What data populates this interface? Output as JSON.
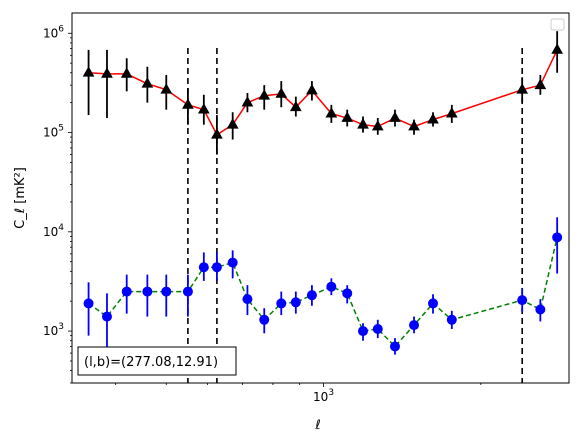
{
  "chart_data": {
    "type": "scatter",
    "title": "",
    "xlabel": "ℓ",
    "ylabel": "C_ℓ  [mK²]",
    "xscale": "log",
    "yscale": "log",
    "xlim": [
      330,
      2950
    ],
    "ylim": [
      300,
      1600000
    ],
    "x_tick_labels": [
      {
        "value": 1000,
        "mantissa": "10",
        "exponent": "3"
      }
    ],
    "y_tick_labels": [
      {
        "value": 1000,
        "mantissa": "10",
        "exponent": "3"
      },
      {
        "value": 10000,
        "mantissa": "10",
        "exponent": "4"
      },
      {
        "value": 100000,
        "mantissa": "10",
        "exponent": "5"
      },
      {
        "value": 1000000,
        "mantissa": "10",
        "exponent": "6"
      }
    ],
    "vertical_lines": [
      550,
      625,
      2400
    ],
    "legend": "top-right (empty)",
    "annotation": "(l,b)=(277.08,12.91)",
    "series": [
      {
        "marker": "triangle",
        "color": "#000000",
        "line_color": "#ff0000",
        "line_style": "solid",
        "points": [
          {
            "x": 355,
            "y": 400000,
            "lo": 150000,
            "hi": 680000
          },
          {
            "x": 385,
            "y": 390000,
            "lo": 140000,
            "hi": 680000
          },
          {
            "x": 420,
            "y": 390000,
            "lo": 260000,
            "hi": 560000
          },
          {
            "x": 460,
            "y": 310000,
            "lo": 200000,
            "hi": 460000
          },
          {
            "x": 500,
            "y": 270000,
            "lo": 170000,
            "hi": 380000
          },
          {
            "x": 550,
            "y": 190000,
            "lo": 120000,
            "hi": 280000
          },
          {
            "x": 590,
            "y": 170000,
            "lo": 120000,
            "hi": 240000
          },
          {
            "x": 625,
            "y": 95000,
            "lo": 60000,
            "hi": 150000
          },
          {
            "x": 670,
            "y": 120000,
            "lo": 85000,
            "hi": 160000
          },
          {
            "x": 715,
            "y": 200000,
            "lo": 160000,
            "hi": 250000
          },
          {
            "x": 770,
            "y": 235000,
            "lo": 170000,
            "hi": 300000
          },
          {
            "x": 830,
            "y": 245000,
            "lo": 180000,
            "hi": 330000
          },
          {
            "x": 885,
            "y": 180000,
            "lo": 145000,
            "hi": 230000
          },
          {
            "x": 950,
            "y": 265000,
            "lo": 210000,
            "hi": 330000
          },
          {
            "x": 1035,
            "y": 155000,
            "lo": 125000,
            "hi": 190000
          },
          {
            "x": 1110,
            "y": 140000,
            "lo": 115000,
            "hi": 170000
          },
          {
            "x": 1190,
            "y": 120000,
            "lo": 100000,
            "hi": 145000
          },
          {
            "x": 1270,
            "y": 115000,
            "lo": 95000,
            "hi": 140000
          },
          {
            "x": 1370,
            "y": 140000,
            "lo": 115000,
            "hi": 170000
          },
          {
            "x": 1490,
            "y": 115000,
            "lo": 95000,
            "hi": 135000
          },
          {
            "x": 1620,
            "y": 135000,
            "lo": 115000,
            "hi": 160000
          },
          {
            "x": 1760,
            "y": 155000,
            "lo": 125000,
            "hi": 190000
          },
          {
            "x": 2400,
            "y": 270000,
            "lo": 200000,
            "hi": 360000
          },
          {
            "x": 2600,
            "y": 300000,
            "lo": 240000,
            "hi": 380000
          },
          {
            "x": 2800,
            "y": 680000,
            "lo": 400000,
            "hi": 1050000
          }
        ]
      },
      {
        "marker": "circle",
        "color": "#0000ff",
        "line_color": "#008000",
        "line_style": "dashed",
        "points": [
          {
            "x": 355,
            "y": 1900,
            "lo": 900,
            "hi": 3100
          },
          {
            "x": 385,
            "y": 1400,
            "lo": 650,
            "hi": 2400
          },
          {
            "x": 420,
            "y": 2500,
            "lo": 1500,
            "hi": 3700
          },
          {
            "x": 460,
            "y": 2500,
            "lo": 1400,
            "hi": 3700
          },
          {
            "x": 500,
            "y": 2500,
            "lo": 1400,
            "hi": 3700
          },
          {
            "x": 550,
            "y": 2500,
            "lo": 1400,
            "hi": 3700
          },
          {
            "x": 590,
            "y": 4400,
            "lo": 3200,
            "hi": 6200
          },
          {
            "x": 625,
            "y": 4400,
            "lo": 3200,
            "hi": 6200
          },
          {
            "x": 670,
            "y": 4900,
            "lo": 3400,
            "hi": 6500
          },
          {
            "x": 715,
            "y": 2100,
            "lo": 1450,
            "hi": 2900
          },
          {
            "x": 770,
            "y": 1300,
            "lo": 950,
            "hi": 1700
          },
          {
            "x": 830,
            "y": 1900,
            "lo": 1450,
            "hi": 2500
          },
          {
            "x": 885,
            "y": 1950,
            "lo": 1500,
            "hi": 2500
          },
          {
            "x": 950,
            "y": 2300,
            "lo": 1800,
            "hi": 2900
          },
          {
            "x": 1035,
            "y": 2800,
            "lo": 2300,
            "hi": 3400
          },
          {
            "x": 1110,
            "y": 2400,
            "lo": 1900,
            "hi": 2900
          },
          {
            "x": 1190,
            "y": 1000,
            "lo": 800,
            "hi": 1200
          },
          {
            "x": 1270,
            "y": 1050,
            "lo": 850,
            "hi": 1300
          },
          {
            "x": 1370,
            "y": 700,
            "lo": 580,
            "hi": 850
          },
          {
            "x": 1490,
            "y": 1150,
            "lo": 950,
            "hi": 1400
          },
          {
            "x": 1620,
            "y": 1900,
            "lo": 1500,
            "hi": 2350
          },
          {
            "x": 1760,
            "y": 1300,
            "lo": 1050,
            "hi": 1600
          },
          {
            "x": 2400,
            "y": 2050,
            "lo": 1550,
            "hi": 2700
          },
          {
            "x": 2600,
            "y": 1650,
            "lo": 1250,
            "hi": 2100
          },
          {
            "x": 2800,
            "y": 8800,
            "lo": 3800,
            "hi": 14000
          }
        ]
      }
    ]
  }
}
